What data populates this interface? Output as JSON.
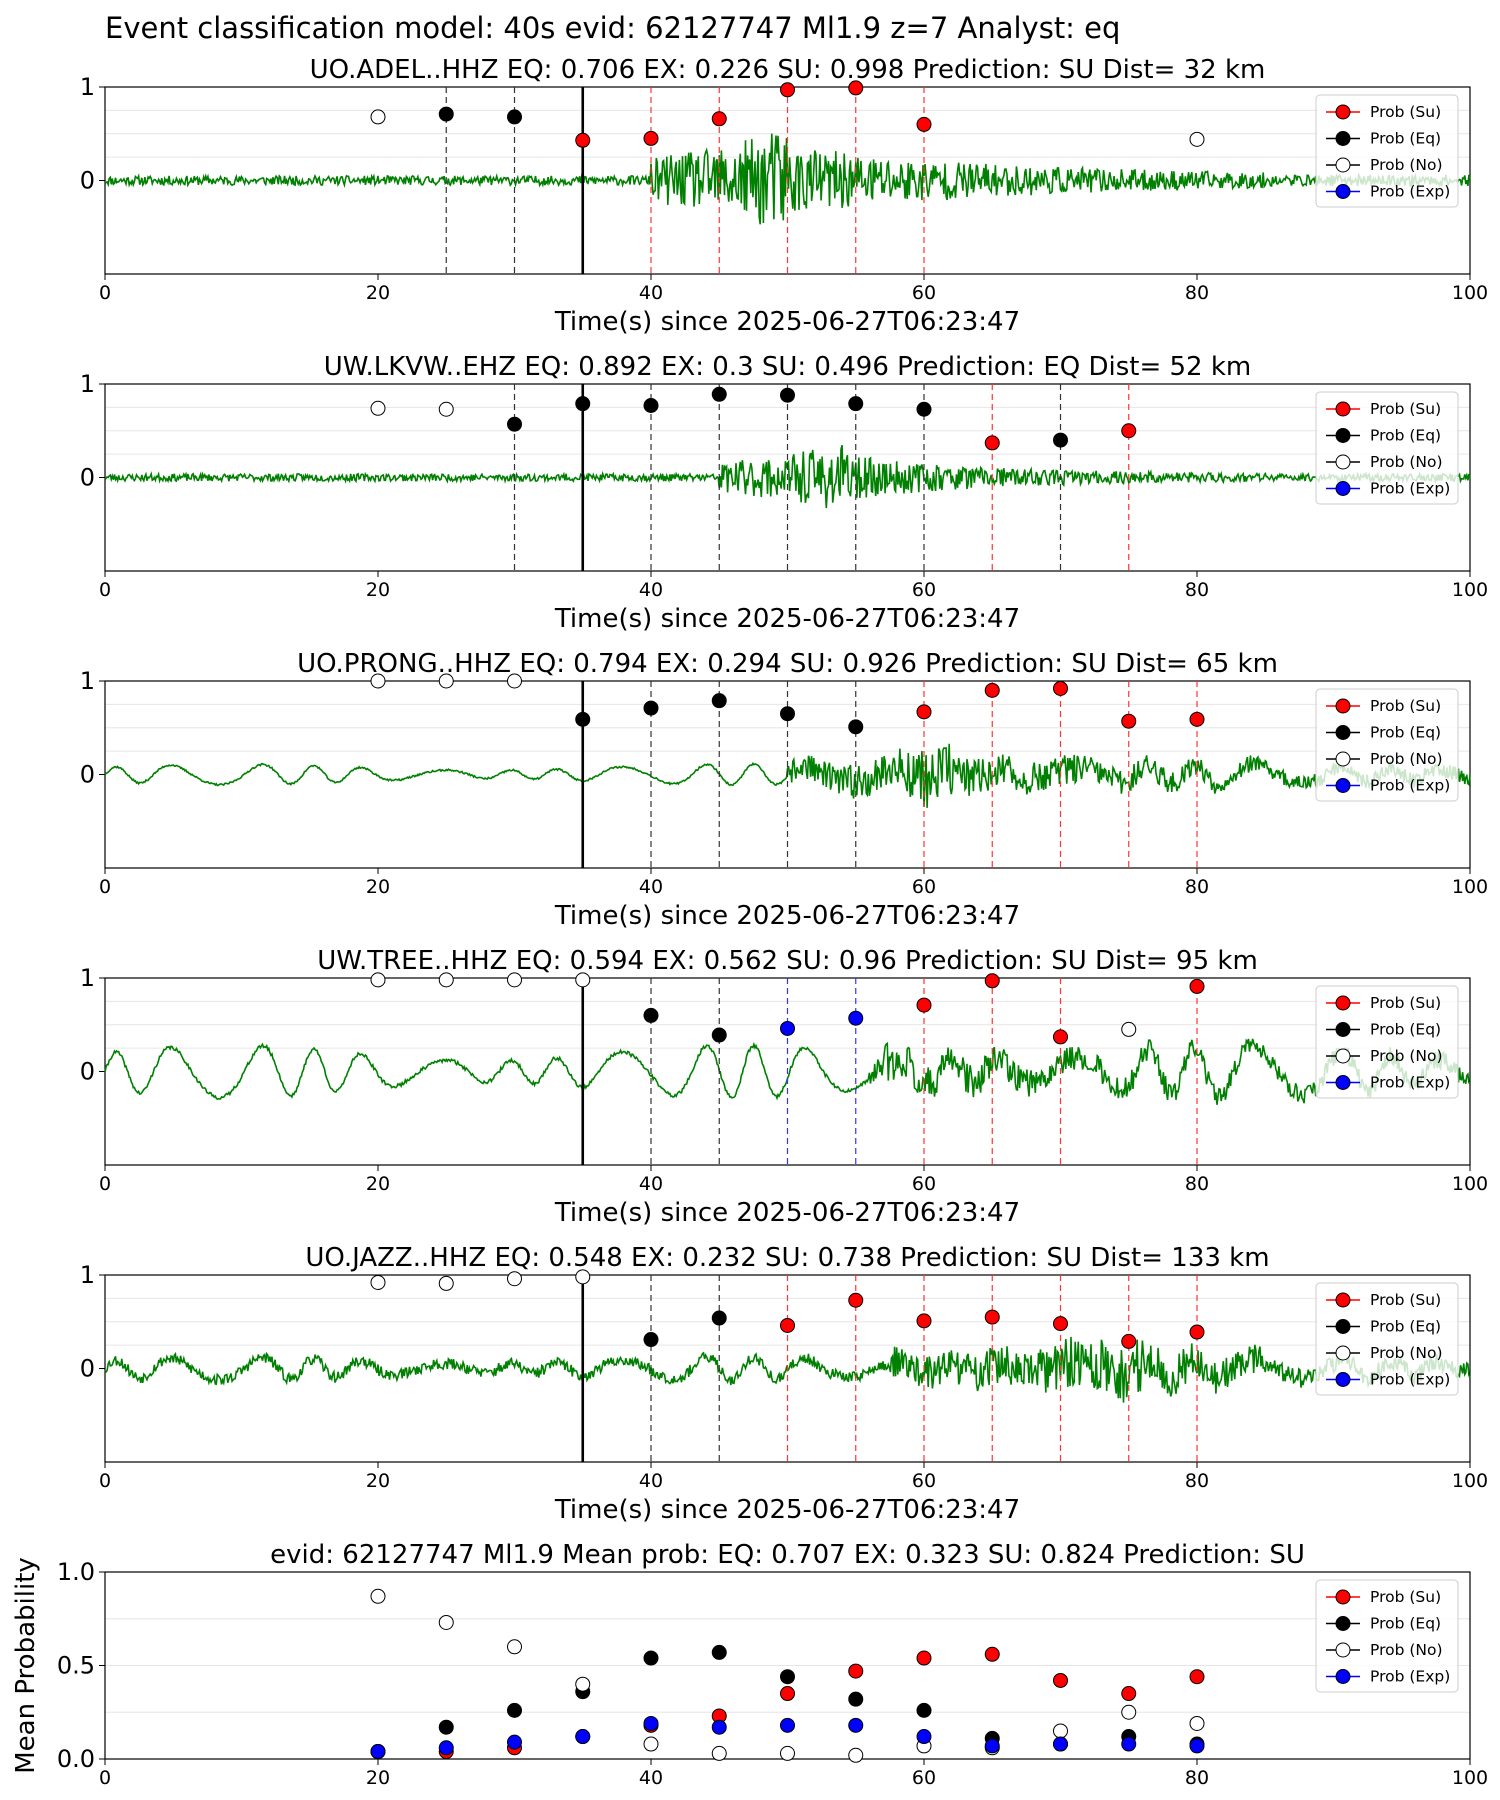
{
  "figure_title": "Event classification model: 40s evid: 62127747 Ml1.9 z=7 Analyst: eq",
  "colors": {
    "waveform": "#008000",
    "su": "#ff0000",
    "eq": "#000000",
    "no": "#ffffff",
    "exp": "#0000ff",
    "origin_line": "#000000"
  },
  "legend": {
    "placement": "upper right",
    "labels": [
      "Prob (Su)",
      "Prob (Eq)",
      "Prob (No)",
      "Prob (Exp)"
    ]
  },
  "chart_data": [
    {
      "type": "line",
      "title": "UO.ADEL..HHZ   EQ: 0.706  EX: 0.226  SU: 0.998   Prediction: SU    Dist= 32 km",
      "xlabel": "Time(s) since 2025-06-27T06:23:47",
      "xlim": [
        0,
        100
      ],
      "ylim": [
        -1,
        1
      ],
      "xticks": [
        "0",
        "20",
        "40",
        "60",
        "80",
        "100"
      ],
      "yticks": [
        "0",
        "1"
      ],
      "origin_time": 35,
      "waveform": {
        "onset": 40,
        "peak": 50,
        "decay": 16,
        "pre_amp": 0.05,
        "post_amp": 0.55,
        "low_freq": 0.0,
        "end_noise": 0.06,
        "seed": 11
      },
      "points": [
        {
          "t": 20,
          "p": 0.68,
          "cls": "no"
        },
        {
          "t": 25,
          "p": 0.71,
          "cls": "eq"
        },
        {
          "t": 30,
          "p": 0.68,
          "cls": "eq"
        },
        {
          "t": 35,
          "p": 0.43,
          "cls": "su"
        },
        {
          "t": 40,
          "p": 0.45,
          "cls": "su"
        },
        {
          "t": 45,
          "p": 0.66,
          "cls": "su"
        },
        {
          "t": 50,
          "p": 0.97,
          "cls": "su"
        },
        {
          "t": 55,
          "p": 0.99,
          "cls": "su"
        },
        {
          "t": 60,
          "p": 0.6,
          "cls": "su"
        },
        {
          "t": 80,
          "p": 0.44,
          "cls": "no"
        }
      ]
    },
    {
      "type": "line",
      "title": "UW.LKVW..EHZ   EQ: 0.892  EX: 0.3  SU: 0.496   Prediction: EQ    Dist= 52 km",
      "xlabel": "Time(s) since 2025-06-27T06:23:47",
      "xlim": [
        0,
        100
      ],
      "ylim": [
        -1,
        1
      ],
      "xticks": [
        "0",
        "20",
        "40",
        "60",
        "80",
        "100"
      ],
      "yticks": [
        "0",
        "1"
      ],
      "origin_time": 35,
      "waveform": {
        "onset": 45,
        "peak": 54,
        "decay": 10,
        "pre_amp": 0.04,
        "post_amp": 0.35,
        "low_freq": 0.0,
        "end_noise": 0.04,
        "seed": 23
      },
      "points": [
        {
          "t": 20,
          "p": 0.74,
          "cls": "no"
        },
        {
          "t": 25,
          "p": 0.73,
          "cls": "no"
        },
        {
          "t": 30,
          "p": 0.57,
          "cls": "eq"
        },
        {
          "t": 35,
          "p": 0.79,
          "cls": "eq"
        },
        {
          "t": 40,
          "p": 0.77,
          "cls": "eq"
        },
        {
          "t": 45,
          "p": 0.89,
          "cls": "eq"
        },
        {
          "t": 50,
          "p": 0.88,
          "cls": "eq"
        },
        {
          "t": 55,
          "p": 0.79,
          "cls": "eq"
        },
        {
          "t": 60,
          "p": 0.73,
          "cls": "eq"
        },
        {
          "t": 65,
          "p": 0.37,
          "cls": "su"
        },
        {
          "t": 70,
          "p": 0.4,
          "cls": "eq"
        },
        {
          "t": 75,
          "p": 0.5,
          "cls": "su"
        }
      ]
    },
    {
      "type": "line",
      "title": "UO.PRONG..HHZ   EQ: 0.794  EX: 0.294  SU: 0.926   Prediction: SU    Dist= 65 km",
      "xlabel": "Time(s) since 2025-06-27T06:23:47",
      "xlim": [
        0,
        100
      ],
      "ylim": [
        -1,
        1
      ],
      "xticks": [
        "0",
        "20",
        "40",
        "60",
        "80",
        "100"
      ],
      "yticks": [
        "0",
        "1"
      ],
      "origin_time": 35,
      "waveform": {
        "onset": 50,
        "peak": 62,
        "decay": 25,
        "pre_amp": 0.01,
        "post_amp": 0.35,
        "low_freq": 0.11,
        "end_noise": 0.08,
        "seed": 37
      },
      "points": [
        {
          "t": 20,
          "p": 1.0,
          "cls": "no"
        },
        {
          "t": 25,
          "p": 1.0,
          "cls": "no"
        },
        {
          "t": 30,
          "p": 1.0,
          "cls": "no"
        },
        {
          "t": 35,
          "p": 0.59,
          "cls": "eq"
        },
        {
          "t": 40,
          "p": 0.71,
          "cls": "eq"
        },
        {
          "t": 45,
          "p": 0.79,
          "cls": "eq"
        },
        {
          "t": 50,
          "p": 0.65,
          "cls": "eq"
        },
        {
          "t": 55,
          "p": 0.51,
          "cls": "eq"
        },
        {
          "t": 60,
          "p": 0.67,
          "cls": "su"
        },
        {
          "t": 65,
          "p": 0.9,
          "cls": "su"
        },
        {
          "t": 70,
          "p": 0.92,
          "cls": "su"
        },
        {
          "t": 75,
          "p": 0.57,
          "cls": "su"
        },
        {
          "t": 80,
          "p": 0.59,
          "cls": "su"
        }
      ]
    },
    {
      "type": "line",
      "title": "UW.TREE..HHZ   EQ: 0.594  EX: 0.562  SU: 0.96   Prediction: SU    Dist= 95 km",
      "xlabel": "Time(s) since 2025-06-27T06:23:47",
      "xlim": [
        0,
        100
      ],
      "ylim": [
        -1,
        1
      ],
      "xticks": [
        "0",
        "20",
        "40",
        "60",
        "80",
        "100"
      ],
      "yticks": [
        "0",
        "1"
      ],
      "origin_time": 35,
      "waveform": {
        "onset": 56,
        "peak": 58,
        "decay": 30,
        "pre_amp": 0.02,
        "post_amp": 0.3,
        "low_freq": 0.28,
        "end_noise": 0.1,
        "seed": 41
      },
      "points": [
        {
          "t": 20,
          "p": 0.98,
          "cls": "no"
        },
        {
          "t": 25,
          "p": 0.98,
          "cls": "no"
        },
        {
          "t": 30,
          "p": 0.98,
          "cls": "no"
        },
        {
          "t": 35,
          "p": 0.98,
          "cls": "no"
        },
        {
          "t": 40,
          "p": 0.6,
          "cls": "eq"
        },
        {
          "t": 45,
          "p": 0.39,
          "cls": "eq"
        },
        {
          "t": 50,
          "p": 0.46,
          "cls": "exp"
        },
        {
          "t": 55,
          "p": 0.57,
          "cls": "exp"
        },
        {
          "t": 60,
          "p": 0.71,
          "cls": "su"
        },
        {
          "t": 65,
          "p": 0.97,
          "cls": "su"
        },
        {
          "t": 70,
          "p": 0.37,
          "cls": "su"
        },
        {
          "t": 75,
          "p": 0.45,
          "cls": "no"
        },
        {
          "t": 80,
          "p": 0.91,
          "cls": "su"
        }
      ]
    },
    {
      "type": "line",
      "title": "UO.JAZZ..HHZ   EQ: 0.548  EX: 0.232  SU: 0.738   Prediction: SU    Dist= 133 km",
      "xlabel": "Time(s) since 2025-06-27T06:23:47",
      "xlim": [
        0,
        100
      ],
      "ylim": [
        -1,
        1
      ],
      "xticks": [
        "0",
        "20",
        "40",
        "60",
        "80",
        "100"
      ],
      "yticks": [
        "0",
        "1"
      ],
      "origin_time": 35,
      "waveform": {
        "onset": 57,
        "peak": 76,
        "decay": 22,
        "pre_amp": 0.06,
        "post_amp": 0.3,
        "low_freq": 0.12,
        "end_noise": 0.1,
        "seed": 53
      },
      "points": [
        {
          "t": 20,
          "p": 0.92,
          "cls": "no"
        },
        {
          "t": 25,
          "p": 0.91,
          "cls": "no"
        },
        {
          "t": 30,
          "p": 0.96,
          "cls": "no"
        },
        {
          "t": 35,
          "p": 0.98,
          "cls": "no"
        },
        {
          "t": 40,
          "p": 0.31,
          "cls": "eq"
        },
        {
          "t": 45,
          "p": 0.54,
          "cls": "eq"
        },
        {
          "t": 50,
          "p": 0.46,
          "cls": "su"
        },
        {
          "t": 55,
          "p": 0.73,
          "cls": "su"
        },
        {
          "t": 60,
          "p": 0.51,
          "cls": "su"
        },
        {
          "t": 65,
          "p": 0.55,
          "cls": "su"
        },
        {
          "t": 70,
          "p": 0.48,
          "cls": "su"
        },
        {
          "t": 75,
          "p": 0.29,
          "cls": "su"
        },
        {
          "t": 80,
          "p": 0.39,
          "cls": "su"
        }
      ]
    },
    {
      "type": "scatter",
      "title": "evid: 62127747   Ml1.9    Mean prob:    EQ: 0.707   EX: 0.323   SU: 0.824    Prediction: SU",
      "ylabel": "Mean Probability",
      "xlim": [
        0,
        100
      ],
      "ylim": [
        0,
        1
      ],
      "xticks": [
        "0",
        "20",
        "40",
        "60",
        "80",
        "100"
      ],
      "yticks": [
        "0.0",
        "0.5",
        "1.0"
      ],
      "series": [
        {
          "name": "Prob (Su)",
          "cls": "su",
          "x": [
            20,
            25,
            30,
            35,
            40,
            45,
            50,
            55,
            60,
            65,
            70,
            75,
            80
          ],
          "y": [
            0.04,
            0.04,
            0.06,
            0.12,
            0.18,
            0.23,
            0.35,
            0.47,
            0.54,
            0.56,
            0.42,
            0.35,
            0.44
          ]
        },
        {
          "name": "Prob (Eq)",
          "cls": "eq",
          "x": [
            20,
            25,
            30,
            35,
            40,
            45,
            50,
            55,
            60,
            65,
            70,
            75,
            80
          ],
          "y": [
            0.04,
            0.17,
            0.26,
            0.36,
            0.54,
            0.57,
            0.44,
            0.32,
            0.26,
            0.11,
            0.08,
            0.12,
            0.08
          ]
        },
        {
          "name": "Prob (No)",
          "cls": "no",
          "x": [
            20,
            25,
            30,
            35,
            40,
            45,
            50,
            55,
            60,
            65,
            70,
            75,
            80
          ],
          "y": [
            0.87,
            0.73,
            0.6,
            0.4,
            0.08,
            0.03,
            0.03,
            0.02,
            0.07,
            0.06,
            0.15,
            0.25,
            0.19
          ]
        },
        {
          "name": "Prob (Exp)",
          "cls": "exp",
          "x": [
            20,
            25,
            30,
            35,
            40,
            45,
            50,
            55,
            60,
            65,
            70,
            75,
            80
          ],
          "y": [
            0.04,
            0.06,
            0.09,
            0.12,
            0.19,
            0.17,
            0.18,
            0.18,
            0.12,
            0.07,
            0.08,
            0.08,
            0.07
          ]
        }
      ]
    }
  ]
}
